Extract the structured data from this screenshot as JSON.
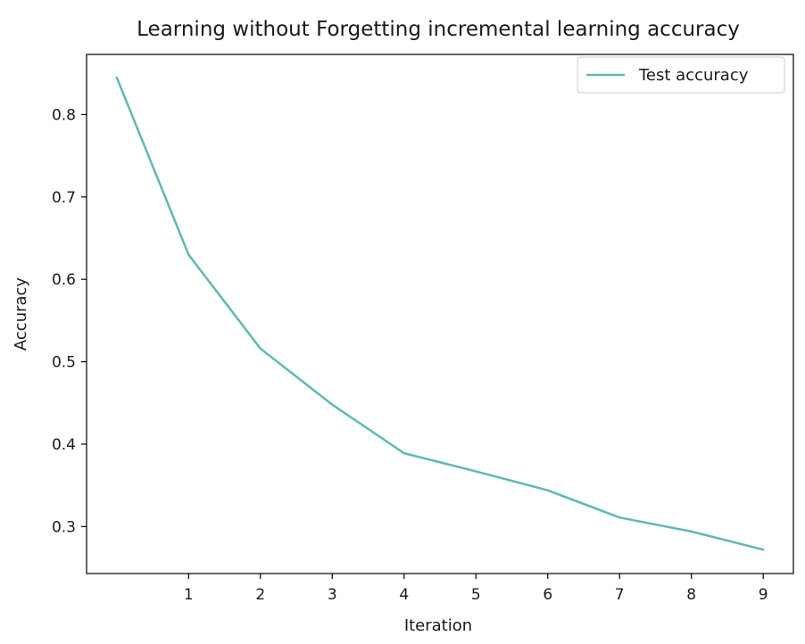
{
  "chart_data": {
    "type": "line",
    "title": "Learning without Forgetting incremental learning accuracy",
    "xlabel": "Iteration",
    "ylabel": "Accuracy",
    "x": [
      0,
      1,
      2,
      3,
      4,
      5,
      6,
      7,
      8,
      9
    ],
    "xticks": [
      1,
      2,
      3,
      4,
      5,
      6,
      7,
      8,
      9
    ],
    "yticks": [
      0.3,
      0.4,
      0.5,
      0.6,
      0.7,
      0.8
    ],
    "xlim": [
      -0.42,
      9.42
    ],
    "ylim": [
      0.243,
      0.873
    ],
    "grid": false,
    "legend_position": "top-right",
    "series": [
      {
        "name": "Test accuracy",
        "color": "#5fb8b4",
        "values": [
          0.845,
          0.63,
          0.516,
          0.448,
          0.389,
          0.367,
          0.344,
          0.311,
          0.294,
          0.272
        ]
      }
    ]
  }
}
